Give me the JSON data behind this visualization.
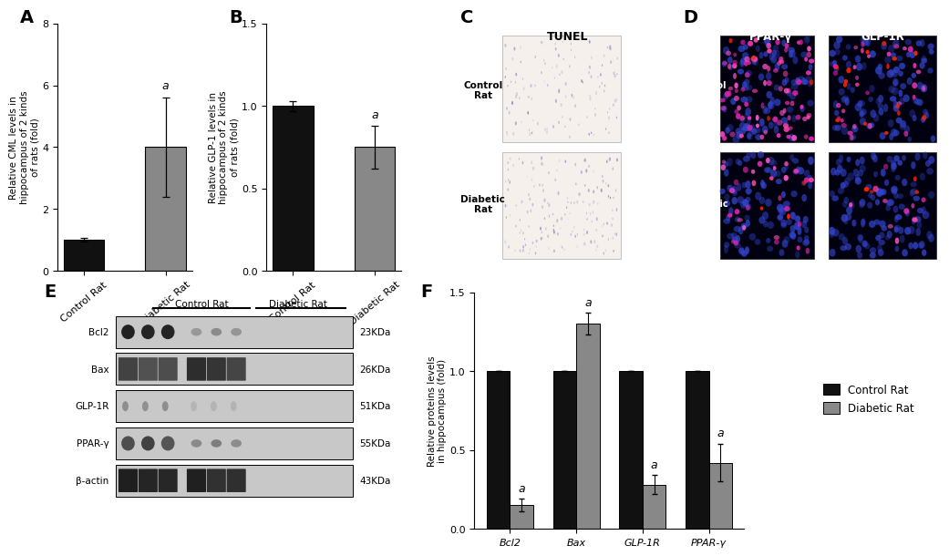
{
  "panel_A": {
    "label": "A",
    "ylabel": "Relative CML levels in\nhippocampus of 2 kinds\nof rats (fold)",
    "categories": [
      "Control Rat",
      "Diabetic Rat"
    ],
    "values": [
      1.0,
      4.0
    ],
    "errors": [
      0.05,
      1.6
    ],
    "colors": [
      "#111111",
      "#888888"
    ],
    "ylim": [
      0,
      8
    ],
    "yticks": [
      0,
      2,
      4,
      6,
      8
    ],
    "sig_labels": [
      "",
      "a"
    ]
  },
  "panel_B": {
    "label": "B",
    "ylabel": "Relative GLP-1 levels in\nhippocampus of 2 kinds\nof rats (fold)",
    "categories": [
      "Control Rat",
      "Diabetic Rat"
    ],
    "values": [
      1.0,
      0.75
    ],
    "errors": [
      0.03,
      0.13
    ],
    "colors": [
      "#111111",
      "#888888"
    ],
    "ylim": [
      0.0,
      1.5
    ],
    "yticks": [
      0.0,
      0.5,
      1.0,
      1.5
    ],
    "sig_labels": [
      "",
      "a"
    ]
  },
  "panel_F": {
    "label": "F",
    "ylabel": "Relative proteins levels\nin hippocampus (fold)",
    "categories": [
      "Bcl2",
      "Bax",
      "GLP-1R",
      "PPAR-γ"
    ],
    "control_values": [
      1.0,
      1.0,
      1.0,
      1.0
    ],
    "diabetic_values": [
      0.15,
      1.3,
      0.28,
      0.42
    ],
    "control_errors": [
      0.0,
      0.0,
      0.0,
      0.0
    ],
    "diabetic_errors": [
      0.04,
      0.07,
      0.06,
      0.12
    ],
    "control_color": "#111111",
    "diabetic_color": "#888888",
    "ylim": [
      0,
      1.5
    ],
    "yticks": [
      0.0,
      0.5,
      1.0,
      1.5
    ],
    "sig_labels_diabetic": [
      "a",
      "a",
      "a",
      "a"
    ]
  },
  "legend": {
    "control_label": "Control Rat",
    "diabetic_label": "Diabetic Rat",
    "control_color": "#111111",
    "diabetic_color": "#888888"
  },
  "bg_color": "#ffffff",
  "font_size_label": 14,
  "font_size_tick": 8,
  "font_size_ylabel": 7.5,
  "font_size_sig": 9
}
